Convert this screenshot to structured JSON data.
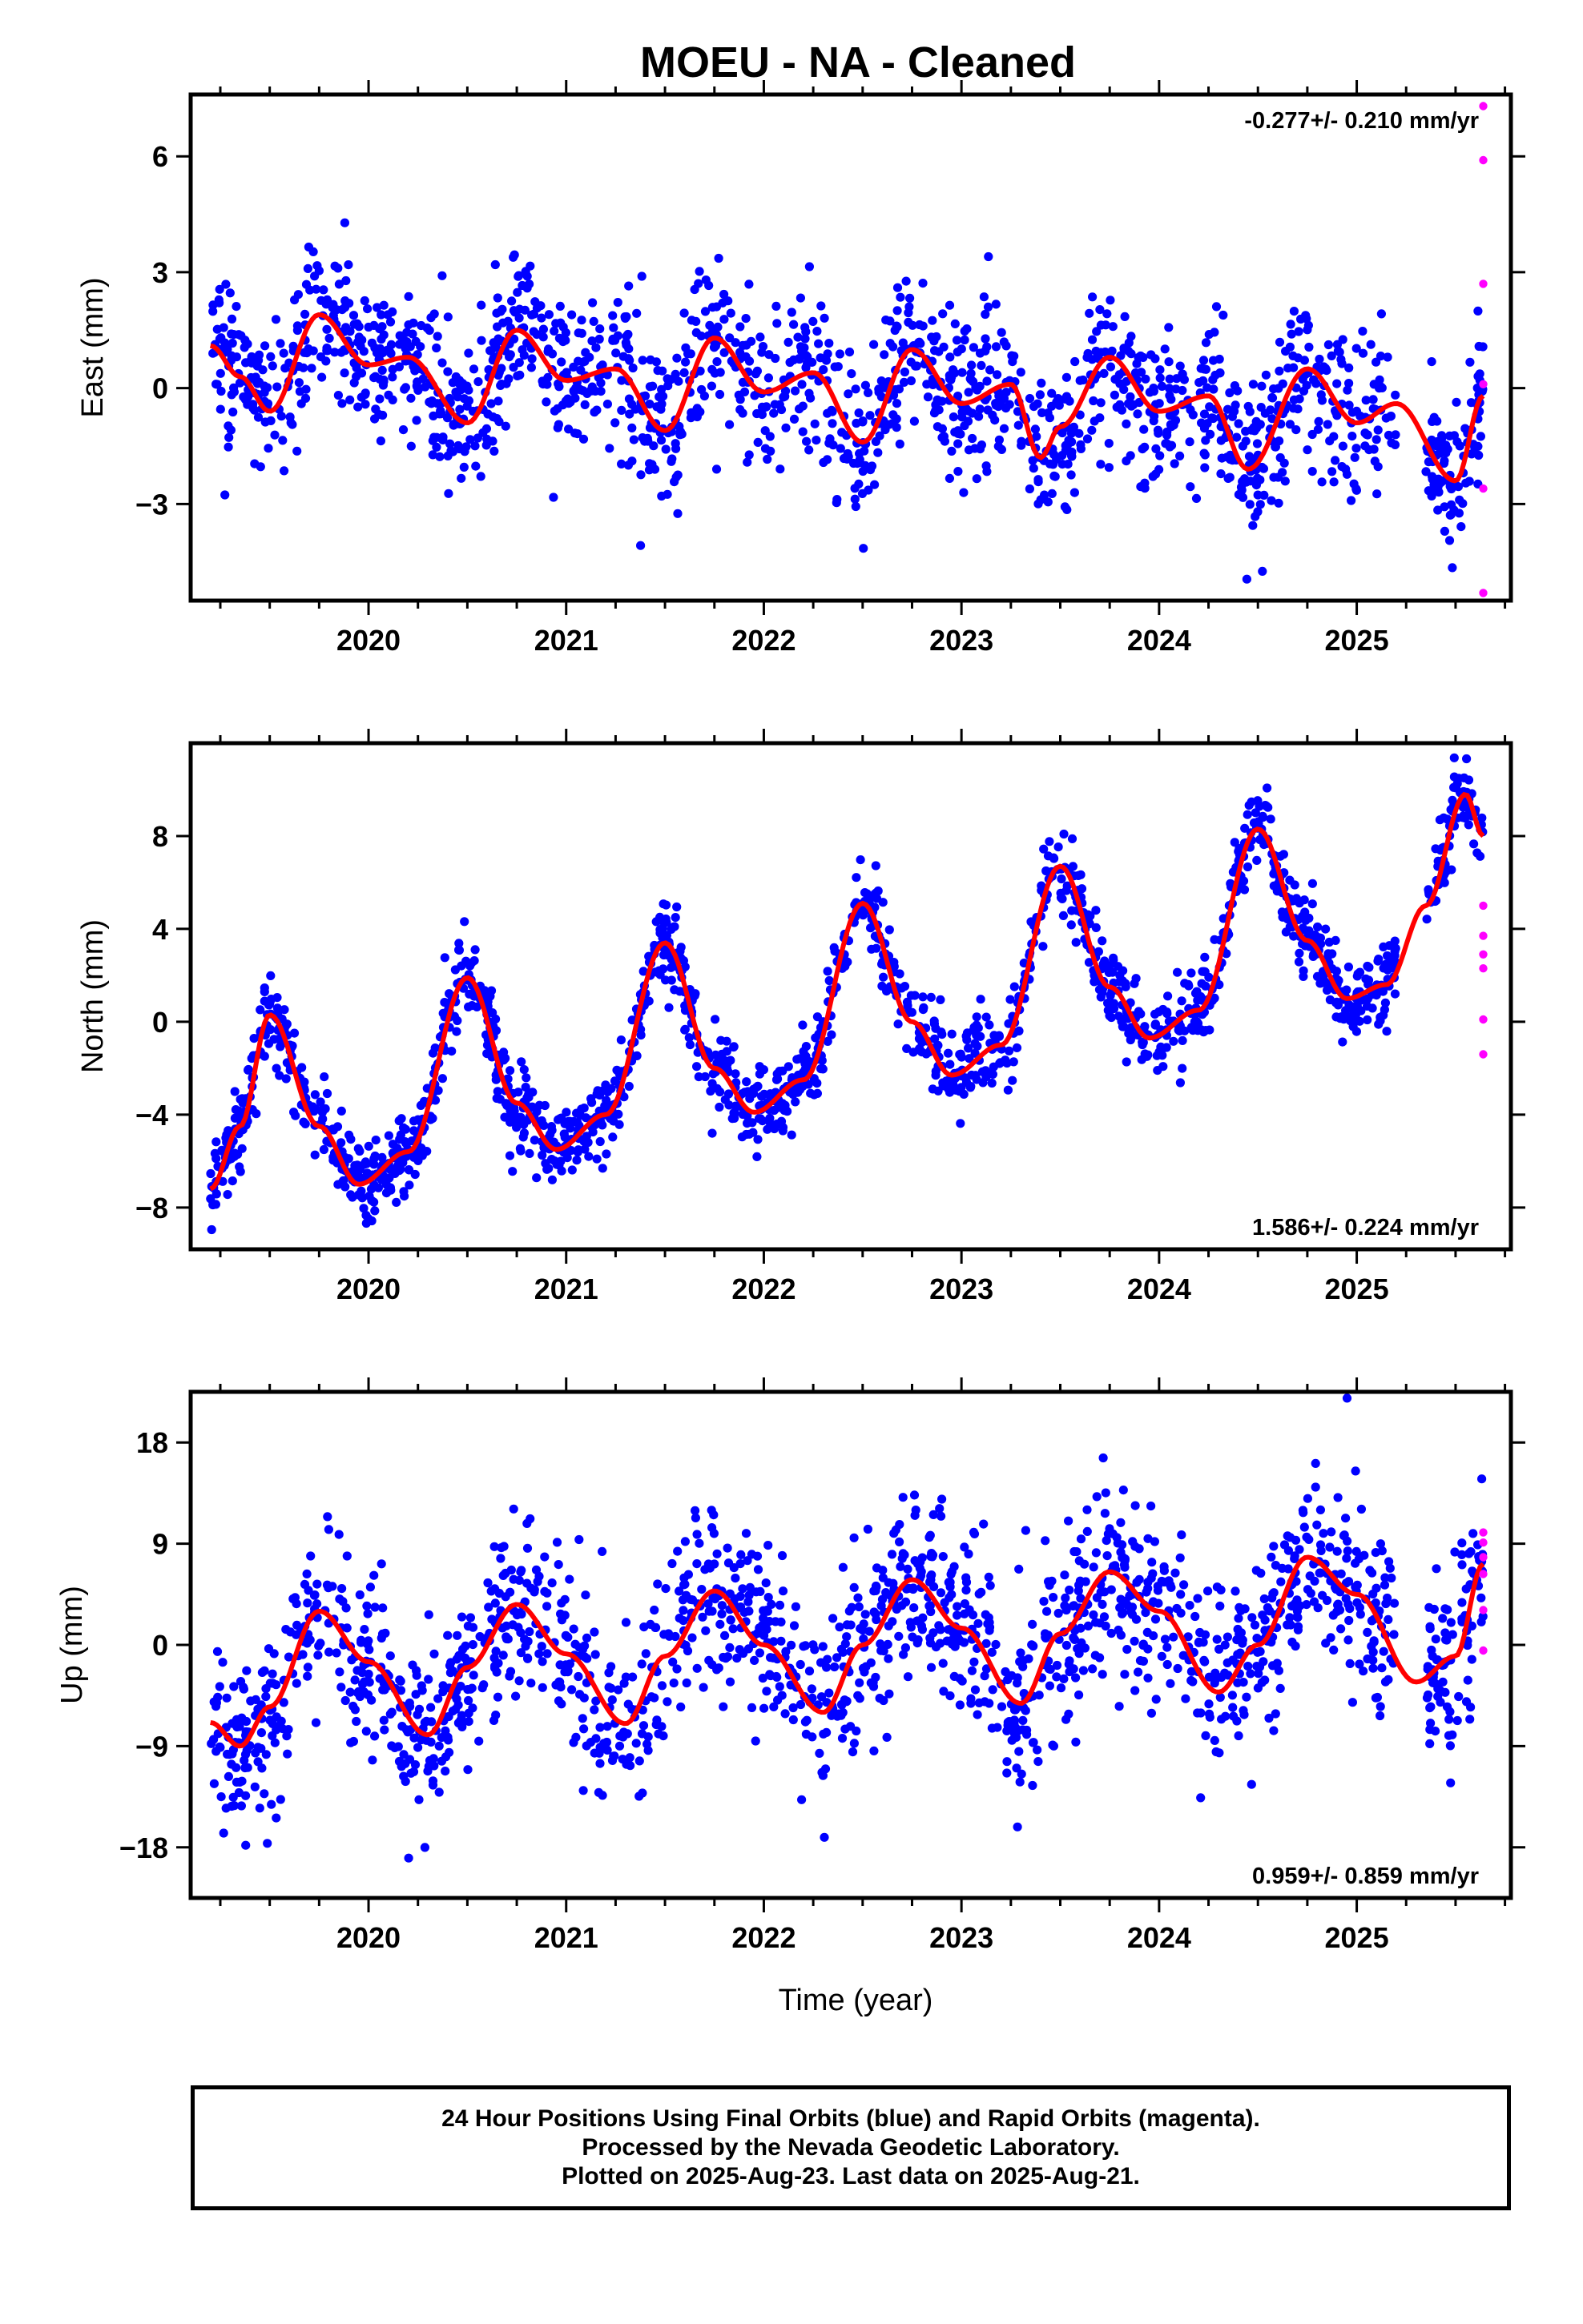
{
  "title": "MOEU  - NA - Cleaned",
  "colors": {
    "final_orbits": "#0000ff",
    "rapid_orbits": "#ff00ff",
    "model_fit": "#ff0000",
    "frame": "#000000"
  },
  "x_axis": {
    "label": "Time (year)",
    "range": [
      2019.1,
      2025.78
    ],
    "ticks": [
      2020,
      2021,
      2022,
      2023,
      2024,
      2025
    ],
    "tick_labels": [
      "2020",
      "2021",
      "2022",
      "2023",
      "2024",
      "2025"
    ]
  },
  "chart_data": [
    {
      "type": "scatter",
      "component": "East",
      "ylabel": "East (mm)",
      "ylim": [
        -5.5,
        7.6
      ],
      "yticks": [
        -3,
        0,
        3,
        6
      ],
      "ytick_labels": [
        "−3",
        "0",
        "3",
        "6"
      ],
      "rate_text": "-0.277+/- 0.210 mm/yr",
      "rate_position": "top-right",
      "data_start": 2019.2,
      "data_end": 2025.64,
      "trend": {
        "offset": 0.0,
        "rate": -0.277
      },
      "fit_curve": {
        "x": [
          2019.2,
          2019.35,
          2019.5,
          2019.75,
          2020.0,
          2020.2,
          2020.5,
          2020.75,
          2021.0,
          2021.25,
          2021.5,
          2021.75,
          2022.0,
          2022.25,
          2022.5,
          2022.75,
          2023.0,
          2023.25,
          2023.4,
          2023.5,
          2023.75,
          2024.0,
          2024.25,
          2024.45,
          2024.75,
          2025.0,
          2025.2,
          2025.5,
          2025.64
        ],
        "y": [
          1.1,
          0.3,
          -0.6,
          1.9,
          0.6,
          0.8,
          -0.9,
          1.5,
          0.2,
          0.5,
          -1.1,
          1.3,
          -0.1,
          0.4,
          -1.4,
          1.0,
          -0.4,
          0.1,
          -1.8,
          -1.0,
          0.8,
          -0.6,
          -0.2,
          -2.1,
          0.5,
          -0.9,
          -0.4,
          -2.4,
          -0.2
        ]
      },
      "scatter": {
        "count": 1700,
        "noise_sd": 1.0
      },
      "rapid_points": {
        "x": 2025.64,
        "y": [
          7.3,
          5.9,
          2.7,
          0.1,
          -2.6,
          -5.3
        ]
      }
    },
    {
      "type": "scatter",
      "component": "North",
      "ylabel": "North (mm)",
      "ylim": [
        -9.8,
        12.0
      ],
      "yticks": [
        -8,
        -4,
        0,
        4,
        8
      ],
      "ytick_labels": [
        "−8",
        "−4",
        "0",
        "4",
        "8"
      ],
      "rate_text": "1.586+/- 0.224 mm/yr",
      "rate_position": "bottom-right",
      "data_start": 2019.2,
      "data_end": 2025.64,
      "trend": {
        "offset": 0.0,
        "rate": 1.586
      },
      "fit_curve": {
        "x": [
          2019.2,
          2019.35,
          2019.5,
          2019.75,
          2019.95,
          2020.2,
          2020.5,
          2020.75,
          2020.95,
          2021.2,
          2021.5,
          2021.75,
          2021.95,
          2022.2,
          2022.5,
          2022.75,
          2022.95,
          2023.2,
          2023.5,
          2023.75,
          2023.95,
          2024.2,
          2024.5,
          2024.75,
          2024.95,
          2025.15,
          2025.35,
          2025.55,
          2025.64
        ],
        "y": [
          -7.2,
          -4.5,
          0.3,
          -4.5,
          -7.0,
          -5.6,
          1.9,
          -3.5,
          -5.5,
          -4.0,
          3.4,
          -2.0,
          -3.9,
          -2.5,
          5.1,
          0.0,
          -2.3,
          -1.0,
          6.7,
          1.5,
          -0.7,
          0.5,
          8.3,
          3.5,
          1.0,
          1.6,
          5.0,
          9.8,
          8.0
        ]
      },
      "scatter": {
        "count": 1700,
        "noise_sd": 0.9
      },
      "rapid_points": {
        "x": 2025.64,
        "y": [
          5.0,
          3.7,
          2.9,
          2.3,
          0.1,
          -1.4
        ]
      }
    },
    {
      "type": "scatter",
      "component": "Up",
      "ylabel": "Up (mm)",
      "ylim": [
        -22.5,
        22.5
      ],
      "yticks": [
        -18,
        -9,
        0,
        9,
        18
      ],
      "ytick_labels": [
        "−18",
        "−9",
        "0",
        "9",
        "18"
      ],
      "rate_text": "0.959+/- 0.859 mm/yr",
      "rate_position": "bottom-right",
      "data_start": 2019.2,
      "data_end": 2025.64,
      "trend": {
        "offset": 0.0,
        "rate": 0.959
      },
      "fit_curve": {
        "x": [
          2019.2,
          2019.35,
          2019.5,
          2019.75,
          2020.0,
          2020.3,
          2020.5,
          2020.75,
          2021.0,
          2021.3,
          2021.5,
          2021.75,
          2022.0,
          2022.3,
          2022.5,
          2022.75,
          2023.0,
          2023.3,
          2023.5,
          2023.75,
          2024.0,
          2024.3,
          2024.5,
          2024.75,
          2025.0,
          2025.3,
          2025.5,
          2025.64
        ],
        "y": [
          -6.9,
          -9.0,
          -5.5,
          3.0,
          -1.5,
          -8.0,
          -2.0,
          3.6,
          -0.8,
          -7.0,
          -1.0,
          4.8,
          0.0,
          -6.0,
          0.0,
          5.8,
          1.5,
          -5.2,
          1.0,
          6.5,
          3.0,
          -4.2,
          0.0,
          7.8,
          4.5,
          -3.3,
          -1.0,
          7.2
        ]
      },
      "scatter": {
        "count": 1700,
        "noise_sd": 4.0
      },
      "rapid_points": {
        "x": 2025.64,
        "y": [
          10.0,
          9.1,
          7.8,
          6.3,
          3.1,
          -0.5
        ]
      }
    }
  ],
  "footer": {
    "line1": "24 Hour Positions Using Final Orbits (blue) and Rapid Orbits (magenta).",
    "line2": "Processed by the Nevada Geodetic Laboratory.",
    "line3": "Plotted on 2025-Aug-23. Last data on 2025-Aug-21."
  }
}
